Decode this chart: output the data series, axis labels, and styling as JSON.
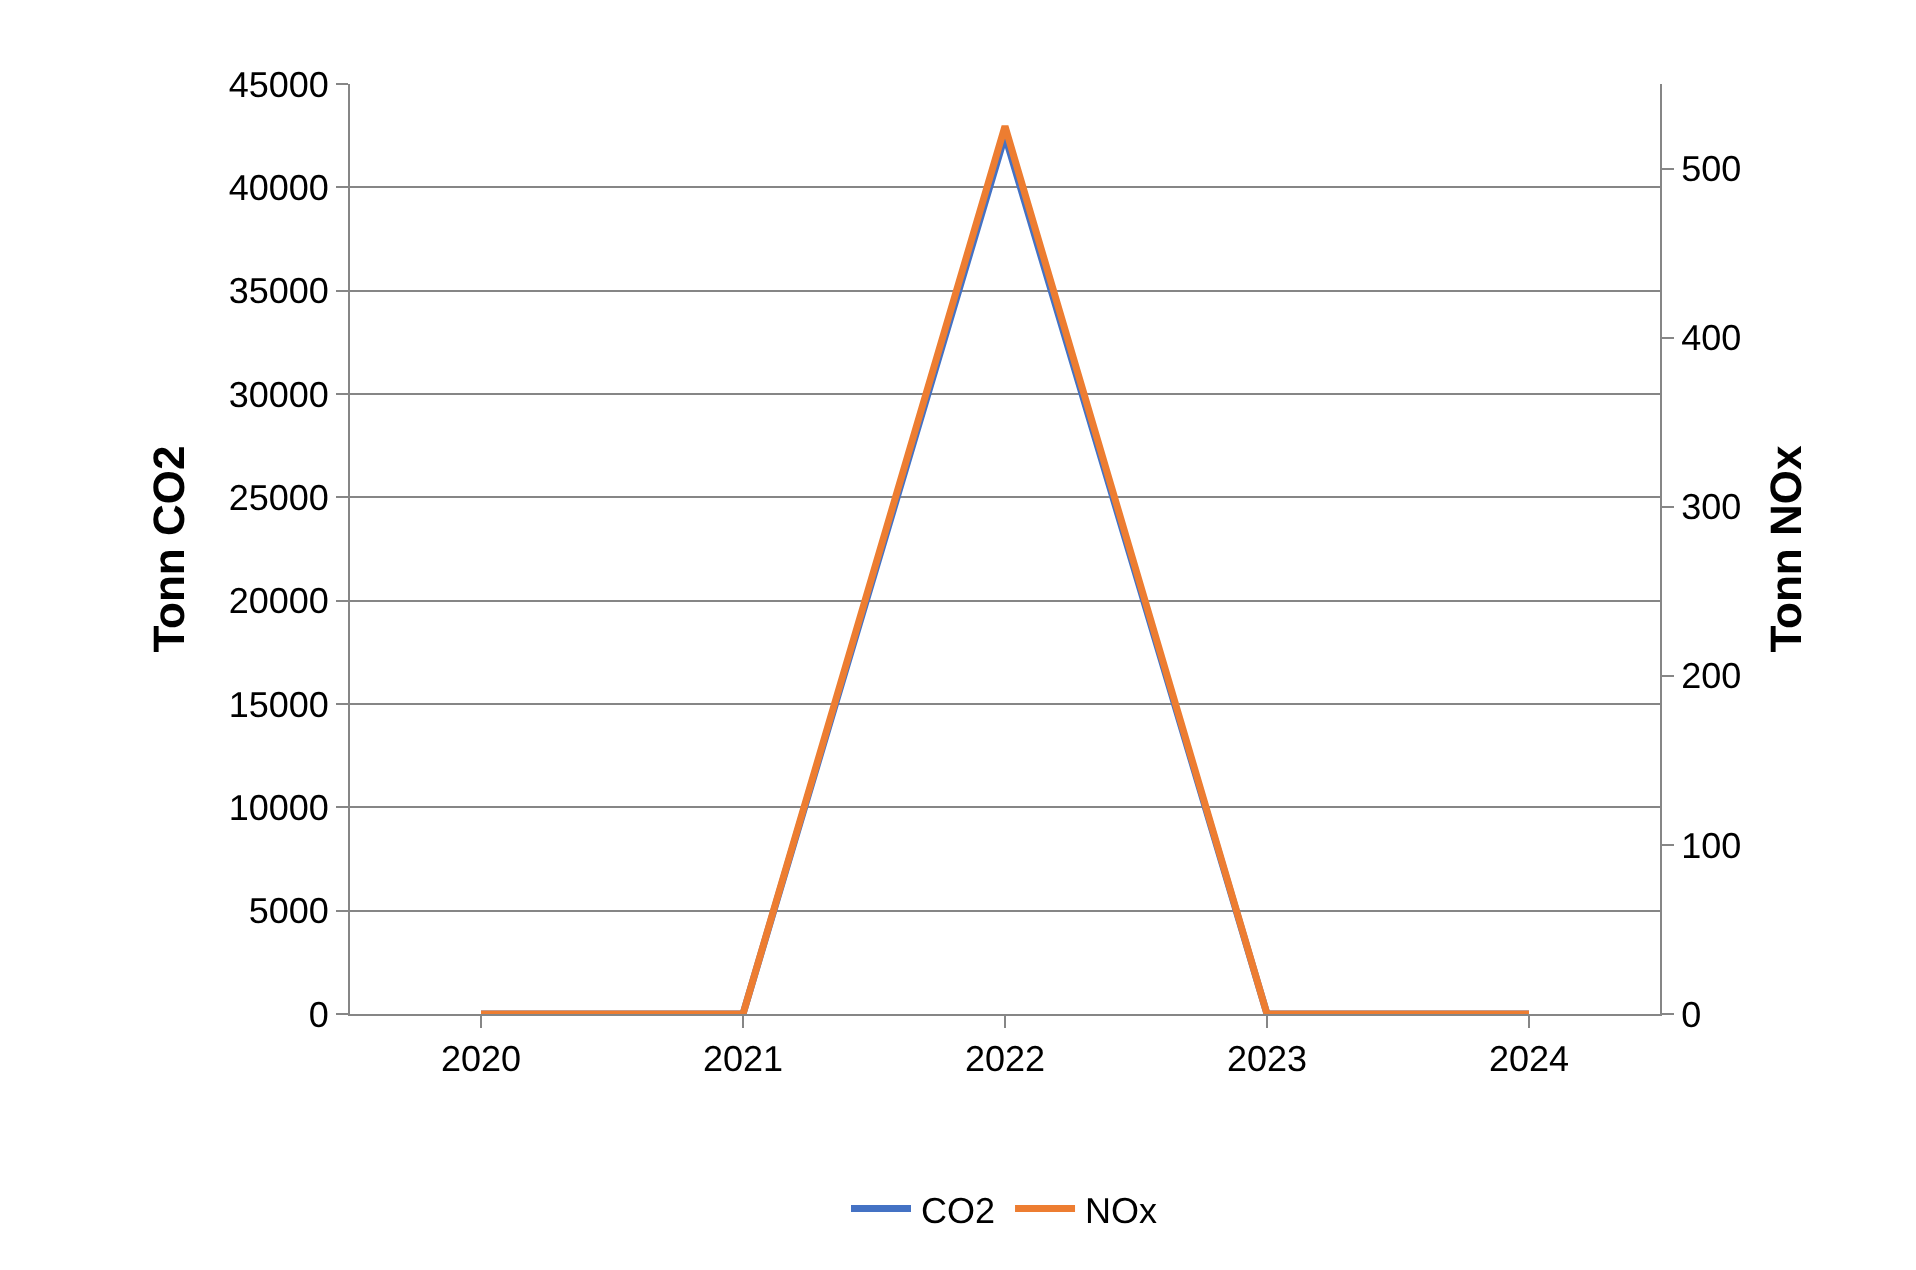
{
  "chart_data": {
    "type": "line",
    "categories": [
      "2020",
      "2021",
      "2022",
      "2023",
      "2024"
    ],
    "ylabel": "Tonn CO2",
    "y2label": "Tonn NOx",
    "series": [
      {
        "name": "CO2",
        "color": "#4472c4",
        "values": [
          0,
          0,
          42500,
          0,
          0
        ]
      },
      {
        "name": "NOx",
        "color": "#ed7d31",
        "values": [
          0,
          0,
          525,
          0,
          0
        ],
        "axis": "y2"
      }
    ],
    "ylim": [
      0,
      45000
    ],
    "yticks": [
      0,
      5000,
      10000,
      15000,
      20000,
      25000,
      30000,
      35000,
      40000,
      45000
    ],
    "y2lim": [
      0,
      550
    ],
    "y2ticks": [
      0,
      100,
      200,
      300,
      400,
      500
    ],
    "grid": "y",
    "legend": "bottom",
    "marker": "none",
    "line_style": "solid"
  }
}
